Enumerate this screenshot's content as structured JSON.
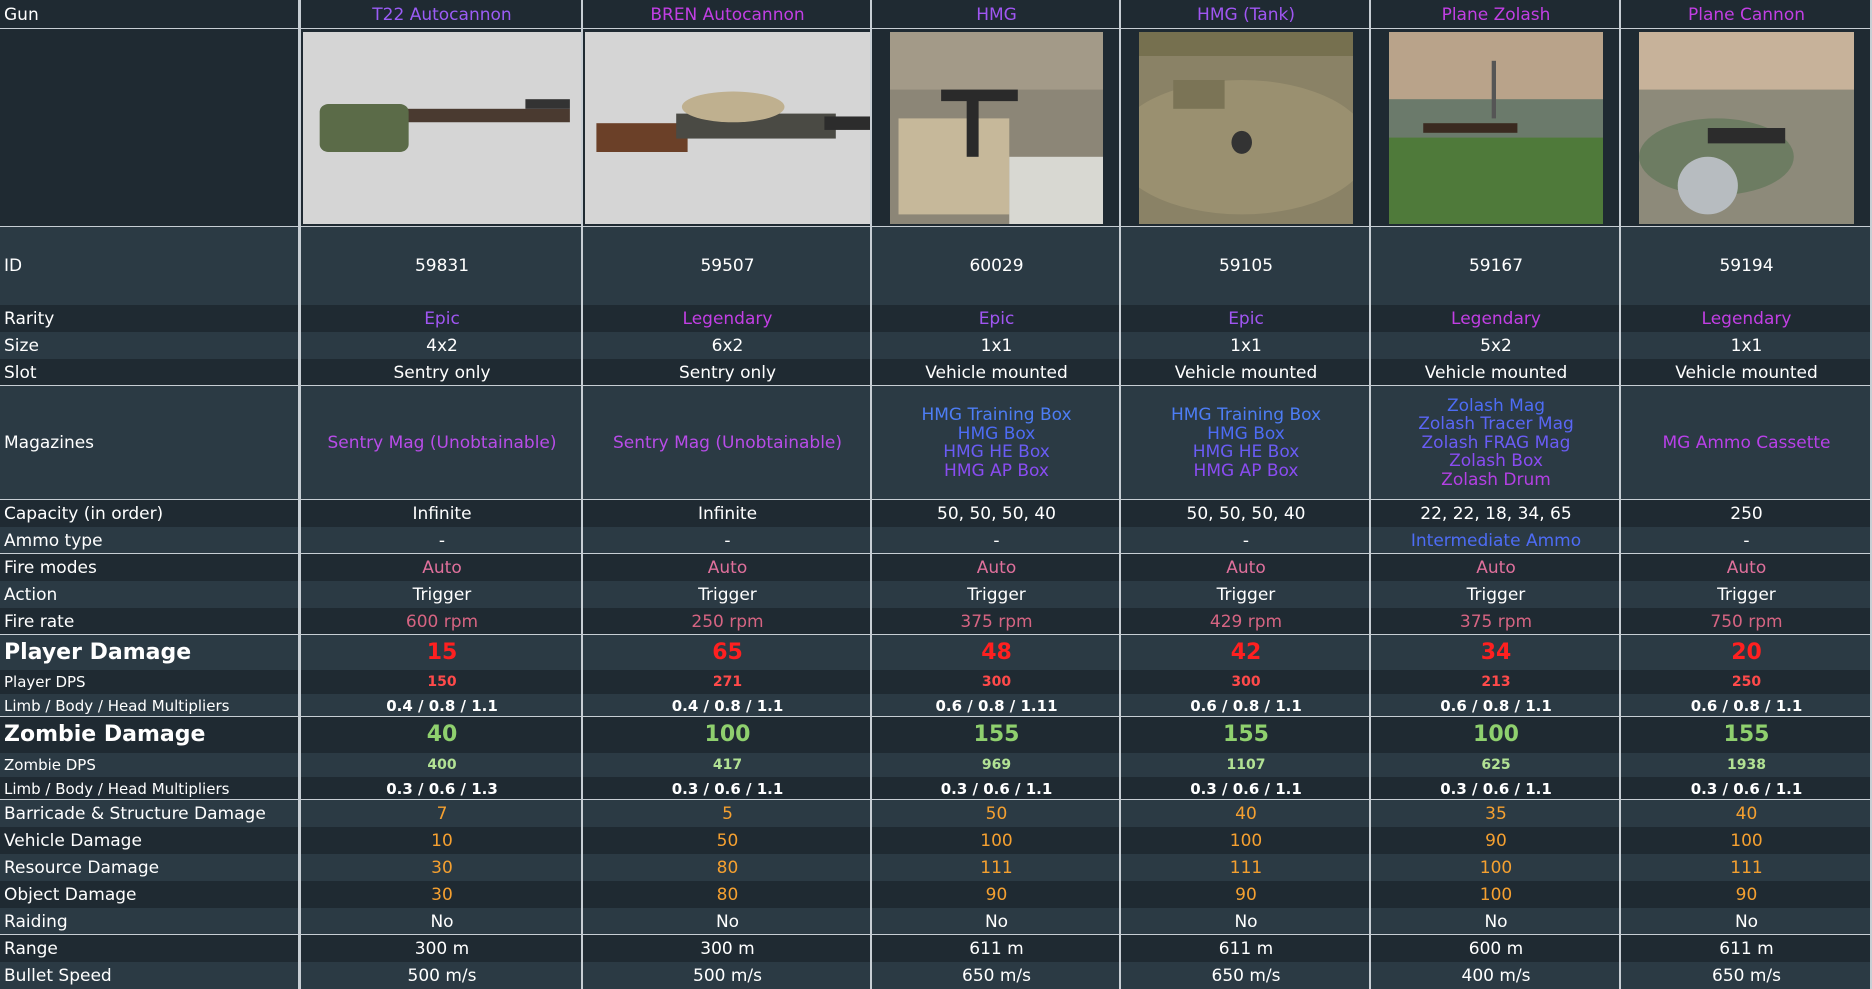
{
  "header": {
    "label": "Gun",
    "columns": [
      {
        "name": "T22 Autocannon",
        "color": "#9b5cf6"
      },
      {
        "name": "BREN Autocannon",
        "color": "#c23fe4"
      },
      {
        "name": "HMG",
        "color": "#a056f2"
      },
      {
        "name": "HMG (Tank)",
        "color": "#a056f2"
      },
      {
        "name": "Plane Zolash",
        "color": "#c23fe4"
      },
      {
        "name": "Plane Cannon",
        "color": "#c23fe4"
      }
    ]
  },
  "rows": [
    {
      "label": "ID",
      "cells": [
        "59831",
        "59507",
        "60029",
        "59105",
        "59167",
        "59194"
      ]
    },
    {
      "label": "Rarity",
      "cells": [
        "Epic",
        "Legendary",
        "Epic",
        "Epic",
        "Legendary",
        "Legendary"
      ],
      "colors": [
        "#a056f2",
        "#c23fe4",
        "#a056f2",
        "#a056f2",
        "#c23fe4",
        "#c23fe4"
      ]
    },
    {
      "label": "Size",
      "cells": [
        "4x2",
        "6x2",
        "1x1",
        "1x1",
        "5x2",
        "1x1"
      ]
    },
    {
      "label": "Slot",
      "cells": [
        "Sentry only",
        "Sentry only",
        "Vehicle mounted",
        "Vehicle mounted",
        "Vehicle mounted",
        "Vehicle mounted"
      ]
    },
    {
      "label": "Magazines",
      "cells": [
        [
          {
            "text": "Sentry Mag (Unobtainable)",
            "color": "#b84ce8"
          }
        ],
        [
          {
            "text": "Sentry Mag (Unobtainable)",
            "color": "#b84ce8"
          }
        ],
        [
          {
            "text": "HMG Training Box",
            "color": "#4d7df5"
          },
          {
            "text": "HMG Box",
            "color": "#4d6cf5"
          },
          {
            "text": "HMG HE Box",
            "color": "#6a5cf5"
          },
          {
            "text": "HMG AP Box",
            "color": "#8a4cf2"
          }
        ],
        [
          {
            "text": "HMG Training Box",
            "color": "#4d7df5"
          },
          {
            "text": "HMG Box",
            "color": "#4d6cf5"
          },
          {
            "text": "HMG HE Box",
            "color": "#6a5cf5"
          },
          {
            "text": "HMG AP Box",
            "color": "#8a4cf2"
          }
        ],
        [
          {
            "text": "Zolash Mag",
            "color": "#4d6cf5"
          },
          {
            "text": "Zolash Tracer Mag",
            "color": "#5a66f5"
          },
          {
            "text": "Zolash FRAG Mag",
            "color": "#6a5cf5"
          },
          {
            "text": "Zolash Box",
            "color": "#8a4cf2"
          },
          {
            "text": "Zolash Drum",
            "color": "#b440e4"
          }
        ],
        [
          {
            "text": "MG Ammo Cassette",
            "color": "#b840e8"
          }
        ]
      ]
    },
    {
      "label": "Capacity (in order)",
      "cells": [
        "Infinite",
        "Infinite",
        "50, 50, 50, 40",
        "50, 50, 50, 40",
        "22, 22, 18, 34, 65",
        "250"
      ]
    },
    {
      "label": "Ammo type",
      "cells": [
        "-",
        "-",
        "-",
        "-",
        "Intermediate Ammo",
        "-"
      ],
      "colors": [
        "#ffffff",
        "#ffffff",
        "#ffffff",
        "#ffffff",
        "#4d6cf5",
        "#ffffff"
      ]
    },
    {
      "label": "Fire modes",
      "cells": [
        "Auto",
        "Auto",
        "Auto",
        "Auto",
        "Auto",
        "Auto"
      ],
      "color": "#e0709c"
    },
    {
      "label": "Action",
      "cells": [
        "Trigger",
        "Trigger",
        "Trigger",
        "Trigger",
        "Trigger",
        "Trigger"
      ]
    },
    {
      "label": "Fire rate",
      "cells": [
        "600 rpm",
        "250 rpm",
        "375 rpm",
        "429 rpm",
        "375 rpm",
        "750 rpm"
      ],
      "color": "#d66482"
    },
    {
      "label": "Player Damage",
      "cells": [
        "15",
        "65",
        "48",
        "42",
        "34",
        "20"
      ],
      "color": "#ff2020"
    },
    {
      "label": "Player DPS",
      "cells": [
        "150",
        "271",
        "300",
        "300",
        "213",
        "250"
      ],
      "color": "#ff4a4a"
    },
    {
      "label": "Limb / Body / Head Multipliers",
      "cells": [
        "0.4 / 0.8 / 1.1",
        "0.4 / 0.8 / 1.1",
        "0.6 / 0.8 / 1.11",
        "0.6 / 0.8 / 1.1",
        "0.6 / 0.8 / 1.1",
        "0.6 / 0.8 / 1.1"
      ]
    },
    {
      "label": "Zombie Damage",
      "cells": [
        "40",
        "100",
        "155",
        "155",
        "100",
        "155"
      ],
      "color": "#8fd06e"
    },
    {
      "label": "Zombie DPS",
      "cells": [
        "400",
        "417",
        "969",
        "1107",
        "625",
        "1938"
      ],
      "color": "#b2e294"
    },
    {
      "label": "Limb / Body / Head Multipliers",
      "cells": [
        "0.3 / 0.6 / 1.3",
        "0.3 / 0.6 / 1.1",
        "0.3 / 0.6 / 1.1",
        "0.3 / 0.6 / 1.1",
        "0.3 / 0.6 / 1.1",
        "0.3 / 0.6 / 1.1"
      ]
    },
    {
      "label": "Barricade & Structure Damage",
      "cells": [
        "7",
        "5",
        "50",
        "40",
        "35",
        "40"
      ],
      "color": "#f5a030"
    },
    {
      "label": "Vehicle Damage",
      "cells": [
        "10",
        "50",
        "100",
        "100",
        "90",
        "100"
      ],
      "color": "#f5a030"
    },
    {
      "label": "Resource Damage",
      "cells": [
        "30",
        "80",
        "111",
        "111",
        "100",
        "111"
      ],
      "color": "#f5a030"
    },
    {
      "label": "Object Damage",
      "cells": [
        "30",
        "80",
        "90",
        "90",
        "100",
        "90"
      ],
      "color": "#f5a030"
    },
    {
      "label": "Raiding",
      "cells": [
        "No",
        "No",
        "No",
        "No",
        "No",
        "No"
      ]
    },
    {
      "label": "Range",
      "cells": [
        "300 m",
        "300 m",
        "611 m",
        "611 m",
        "600 m",
        "611 m"
      ]
    },
    {
      "label": "Bullet Speed",
      "cells": [
        "500 m/s",
        "500 m/s",
        "650 m/s",
        "650 m/s",
        "400 m/s",
        "650 m/s"
      ]
    }
  ]
}
